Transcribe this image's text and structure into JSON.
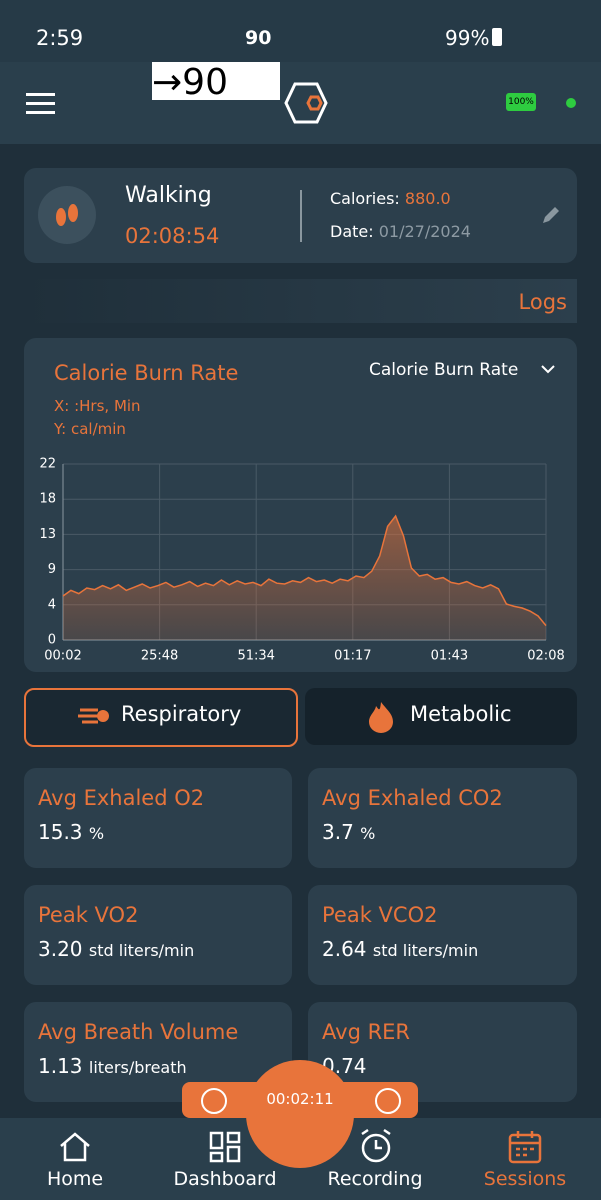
{
  "status_bar": {
    "time": "2:59",
    "indicator": "90",
    "battery": "99%"
  },
  "header": {
    "speed_box": "→90",
    "device_battery": "100%"
  },
  "activity": {
    "name": "Walking",
    "duration": "02:08:54",
    "calories_label": "Calories:",
    "calories": "880.0",
    "date_label": "Date:",
    "date": "01/27/2024"
  },
  "logs_label": "Logs",
  "chart": {
    "type": "area",
    "title": "Calorie Burn Rate",
    "dropdown": "Calorie Burn Rate",
    "x_axis_note": "X: :Hrs, Min",
    "y_axis_note": "Y: cal/min",
    "xtick_labels": [
      "00:02",
      "25:48",
      "51:34",
      "01:17",
      "01:43",
      "02:08"
    ],
    "ylim": [
      0,
      22
    ],
    "yticks": [
      0,
      {
        "value": 4.4,
        "label": "4"
      },
      {
        "value": 8.8,
        "label": "9"
      },
      {
        "value": 13.2,
        "label": "13"
      },
      {
        "value": 17.6,
        "label": "18"
      },
      22
    ],
    "color": "#e8743b",
    "grid": true,
    "values": [
      5.5,
      6.2,
      5.8,
      6.5,
      6.3,
      6.8,
      6.4,
      6.9,
      6.2,
      6.6,
      7.0,
      6.5,
      6.8,
      7.2,
      6.6,
      6.9,
      7.3,
      6.7,
      7.1,
      6.8,
      7.5,
      6.9,
      7.4,
      7.0,
      7.2,
      6.8,
      7.6,
      7.1,
      7.0,
      7.4,
      7.2,
      7.8,
      7.3,
      7.5,
      7.1,
      7.6,
      7.4,
      8.0,
      7.8,
      8.6,
      10.5,
      14.2,
      15.5,
      13.0,
      9.0,
      8.0,
      8.2,
      7.6,
      7.8,
      7.2,
      7.0,
      7.3,
      6.8,
      6.5,
      6.9,
      6.4,
      4.5,
      4.2,
      4.0,
      3.6,
      3.0,
      1.8
    ]
  },
  "tabs": [
    "Respiratory",
    "Metabolic"
  ],
  "metrics": [
    {
      "label": "Avg Exhaled O2",
      "value": "15.3",
      "unit": "%"
    },
    {
      "label": "Avg Exhaled CO2",
      "value": "3.7",
      "unit": "%"
    },
    {
      "label": "Peak VO2",
      "value": "3.20",
      "unit": "std liters/min"
    },
    {
      "label": "Peak VCO2",
      "value": "2.64",
      "unit": "std liters/min"
    },
    {
      "label": "Avg Breath Volume",
      "value": "1.13",
      "unit": "liters/breath"
    },
    {
      "label": "Avg RER",
      "value": "0.74",
      "unit": ""
    }
  ],
  "timer": "00:02:11",
  "nav": [
    "Home",
    "Dashboard",
    "Recording",
    "Sessions"
  ]
}
